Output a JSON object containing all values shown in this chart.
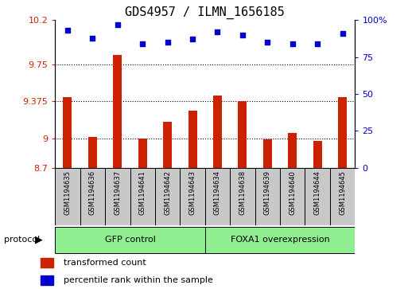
{
  "title": "GDS4957 / ILMN_1656185",
  "samples": [
    "GSM1194635",
    "GSM1194636",
    "GSM1194637",
    "GSM1194641",
    "GSM1194642",
    "GSM1194643",
    "GSM1194634",
    "GSM1194638",
    "GSM1194639",
    "GSM1194640",
    "GSM1194644",
    "GSM1194645"
  ],
  "transformed_counts": [
    9.42,
    9.01,
    9.85,
    9.0,
    9.17,
    9.28,
    9.43,
    9.38,
    8.99,
    9.05,
    8.97,
    9.42
  ],
  "percentile_ranks": [
    93,
    88,
    97,
    84,
    85,
    87,
    92,
    90,
    85,
    84,
    84,
    91
  ],
  "ylim_left": [
    8.7,
    10.2
  ],
  "ylim_right": [
    0,
    100
  ],
  "yticks_left": [
    8.7,
    9.0,
    9.375,
    9.75,
    10.2
  ],
  "ytick_labels_left": [
    "8.7",
    "9",
    "9.375",
    "9.75",
    "10.2"
  ],
  "yticks_right": [
    0,
    25,
    50,
    75,
    100
  ],
  "ytick_labels_right": [
    "0",
    "25",
    "50",
    "75",
    "100%"
  ],
  "groups": [
    {
      "label": "GFP control",
      "n": 6,
      "color": "#90EE90"
    },
    {
      "label": "FOXA1 overexpression",
      "n": 6,
      "color": "#90EE90"
    }
  ],
  "bar_color": "#CC2200",
  "dot_color": "#0000CC",
  "bar_width": 0.35,
  "sample_box_color": "#C8C8C8",
  "protocol_label": "protocol",
  "legend_items": [
    {
      "label": "transformed count",
      "color": "#CC2200"
    },
    {
      "label": "percentile rank within the sample",
      "color": "#0000CC"
    }
  ]
}
